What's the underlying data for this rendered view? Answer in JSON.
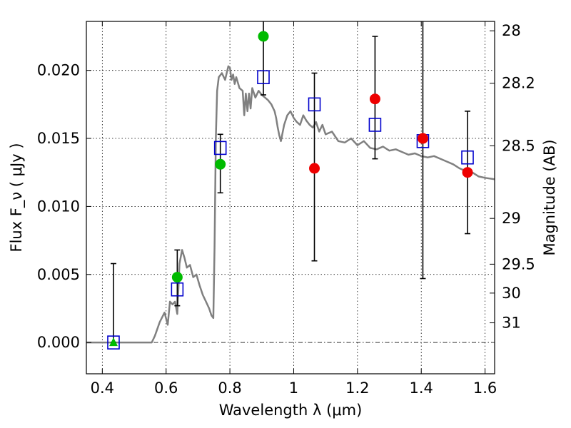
{
  "chart_data": {
    "type": "scatter",
    "title": "",
    "xlabel": "Wavelength  λ (μm)",
    "ylabel": "Flux  F_ν  ( μJy )",
    "ylabel2": "Magnitude (AB)",
    "xlim": [
      0.35,
      1.63
    ],
    "ylim": [
      -0.0023,
      0.0236
    ],
    "grid": true,
    "legend": "none",
    "x_ticks": [
      {
        "value": 0.4,
        "label": "0.4"
      },
      {
        "value": 0.6,
        "label": "0.6"
      },
      {
        "value": 0.8,
        "label": "0.8"
      },
      {
        "value": 1.0,
        "label": "1"
      },
      {
        "value": 1.2,
        "label": "1.2"
      },
      {
        "value": 1.4,
        "label": "1.4"
      },
      {
        "value": 1.6,
        "label": "1.6"
      }
    ],
    "y_ticks": [
      {
        "value": 0.0,
        "label": "0.000"
      },
      {
        "value": 0.005,
        "label": "0.005"
      },
      {
        "value": 0.01,
        "label": "0.010"
      },
      {
        "value": 0.015,
        "label": "0.015"
      },
      {
        "value": 0.02,
        "label": "0.020"
      }
    ],
    "y2_ticks": [
      {
        "mag": 28,
        "label": "28"
      },
      {
        "mag": 28.2,
        "label": "28.2"
      },
      {
        "mag": 28.5,
        "label": "28.5"
      },
      {
        "mag": 29,
        "label": "29"
      },
      {
        "mag": 29.5,
        "label": "29.5"
      },
      {
        "mag": 30,
        "label": "30"
      },
      {
        "mag": 31,
        "label": "31"
      }
    ],
    "series": [
      {
        "color": "#808080",
        "kind": "line",
        "x": [
          0.35,
          0.555,
          0.565,
          0.58,
          0.595,
          0.605,
          0.612,
          0.62,
          0.628,
          0.635,
          0.642,
          0.65,
          0.658,
          0.665,
          0.675,
          0.685,
          0.695,
          0.705,
          0.715,
          0.725,
          0.735,
          0.742,
          0.748,
          0.752,
          0.756,
          0.76,
          0.765,
          0.775,
          0.785,
          0.79,
          0.795,
          0.8,
          0.805,
          0.81,
          0.815,
          0.82,
          0.83,
          0.84,
          0.845,
          0.85,
          0.855,
          0.86,
          0.865,
          0.87,
          0.88,
          0.89,
          0.9,
          0.91,
          0.92,
          0.93,
          0.94,
          0.945,
          0.95,
          0.955,
          0.96,
          0.97,
          0.98,
          0.99,
          1.0,
          1.01,
          1.02,
          1.03,
          1.04,
          1.05,
          1.06,
          1.07,
          1.08,
          1.09,
          1.1,
          1.12,
          1.14,
          1.16,
          1.18,
          1.2,
          1.22,
          1.24,
          1.26,
          1.28,
          1.3,
          1.32,
          1.34,
          1.36,
          1.38,
          1.4,
          1.42,
          1.44,
          1.46,
          1.48,
          1.5,
          1.52,
          1.54,
          1.56,
          1.58,
          1.6,
          1.63
        ],
        "y": [
          0.0,
          0.0,
          0.0005,
          0.0015,
          0.0022,
          0.0013,
          0.003,
          0.0028,
          0.003,
          0.0021,
          0.0058,
          0.0068,
          0.0062,
          0.0055,
          0.0057,
          0.0048,
          0.005,
          0.0042,
          0.0035,
          0.003,
          0.0025,
          0.002,
          0.0018,
          0.007,
          0.015,
          0.0185,
          0.0195,
          0.0198,
          0.0193,
          0.0198,
          0.0203,
          0.0202,
          0.0193,
          0.0197,
          0.019,
          0.0195,
          0.0187,
          0.0185,
          0.0167,
          0.0183,
          0.017,
          0.0183,
          0.0172,
          0.0187,
          0.018,
          0.0185,
          0.0182,
          0.018,
          0.0178,
          0.0175,
          0.017,
          0.0165,
          0.0158,
          0.0152,
          0.0148,
          0.016,
          0.0167,
          0.017,
          0.0165,
          0.0162,
          0.016,
          0.0167,
          0.0163,
          0.016,
          0.0158,
          0.0162,
          0.0155,
          0.016,
          0.0153,
          0.0155,
          0.0148,
          0.0147,
          0.015,
          0.0145,
          0.0148,
          0.0143,
          0.0142,
          0.0144,
          0.0141,
          0.0142,
          0.014,
          0.0138,
          0.0139,
          0.0137,
          0.0136,
          0.0137,
          0.0135,
          0.0133,
          0.0131,
          0.0128,
          0.0126,
          0.0125,
          0.0122,
          0.0121,
          0.012
        ]
      },
      {
        "color": "#0000cc",
        "kind": "open-square",
        "x": [
          0.435,
          0.635,
          0.77,
          0.905,
          1.065,
          1.255,
          1.405,
          1.545
        ],
        "y": [
          0.0,
          0.0039,
          0.0143,
          0.0195,
          0.0175,
          0.016,
          0.0148,
          0.0136
        ]
      },
      {
        "color": "#00bb00",
        "kind": "filled-circle",
        "x": [
          0.635,
          0.77,
          0.905
        ],
        "y": [
          0.0048,
          0.0131,
          0.0225
        ]
      },
      {
        "color": "#ee0000",
        "kind": "filled-circle",
        "x": [
          1.065,
          1.255,
          1.405,
          1.545
        ],
        "y": [
          0.0128,
          0.0179,
          0.015,
          0.0125
        ]
      },
      {
        "color": "#00bb00",
        "kind": "triangle",
        "x": [
          0.435
        ],
        "y": [
          0.0
        ]
      }
    ],
    "errorbars": [
      {
        "x": 0.435,
        "low": 0.0,
        "high": 0.0058
      },
      {
        "x": 0.635,
        "low": 0.0027,
        "high": 0.0068
      },
      {
        "x": 0.77,
        "low": 0.011,
        "high": 0.0153
      },
      {
        "x": 0.905,
        "low": 0.0182,
        "high": 0.024
      },
      {
        "x": 1.065,
        "low": 0.006,
        "high": 0.0198
      },
      {
        "x": 1.255,
        "low": 0.0135,
        "high": 0.0225
      },
      {
        "x": 1.405,
        "low": 0.0047,
        "high": 0.024
      },
      {
        "x": 1.545,
        "low": 0.008,
        "high": 0.017
      }
    ],
    "zero_line": true
  }
}
